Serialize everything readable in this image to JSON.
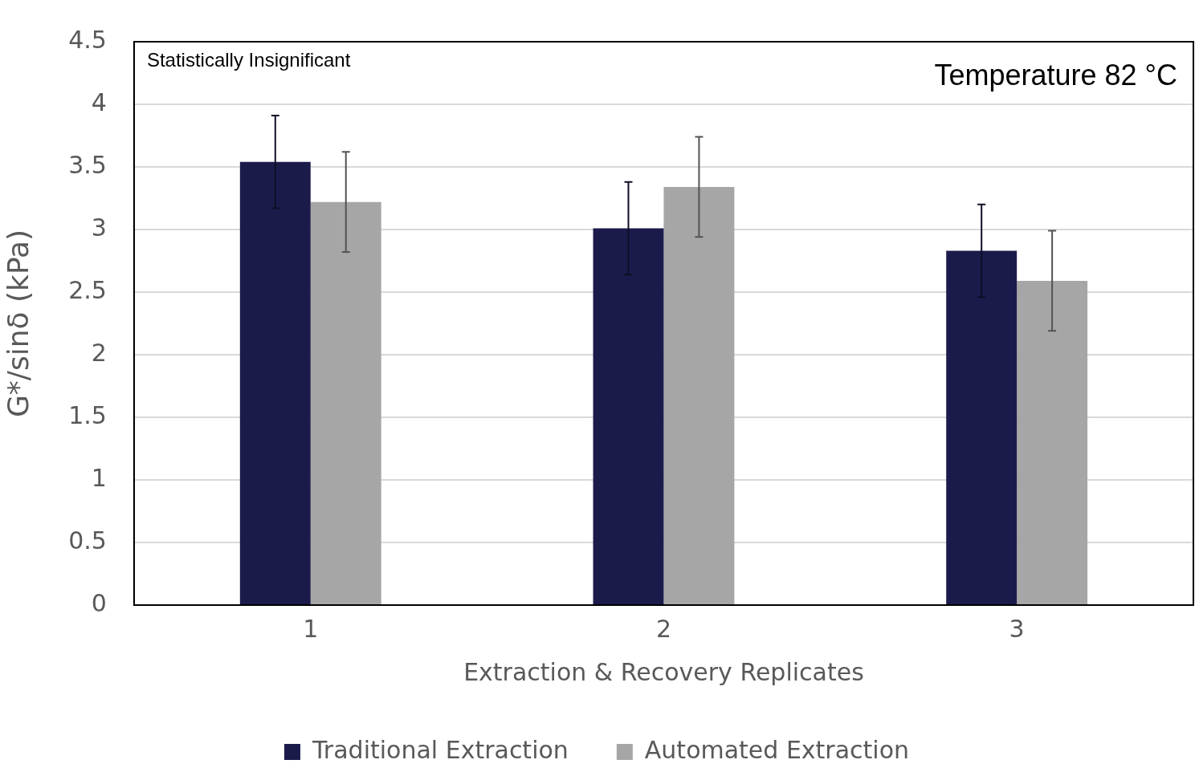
{
  "chart_data": {
    "type": "bar",
    "xlabel": "Extraction & Recovery Replicates",
    "ylabel": "G*/sinδ (kPa)",
    "categories": [
      "1",
      "2",
      "3"
    ],
    "series": [
      {
        "name": "Traditional Extraction",
        "color": "#1b1b4b",
        "values": [
          3.54,
          3.01,
          2.83
        ],
        "errors": [
          0.37,
          0.37,
          0.37
        ]
      },
      {
        "name": "Automated Extraction",
        "color": "#a6a6a6",
        "values": [
          3.22,
          3.34,
          2.59
        ],
        "errors": [
          0.4,
          0.4,
          0.4
        ]
      }
    ],
    "ylim": [
      0,
      4.5
    ],
    "yticks": [
      0,
      0.5,
      1,
      1.5,
      2,
      2.5,
      3,
      3.5,
      4,
      4.5
    ],
    "grid": "y",
    "legend": "bottom",
    "annotations": [
      "Statistically Insignificant",
      "Temperature 82 °C"
    ]
  }
}
